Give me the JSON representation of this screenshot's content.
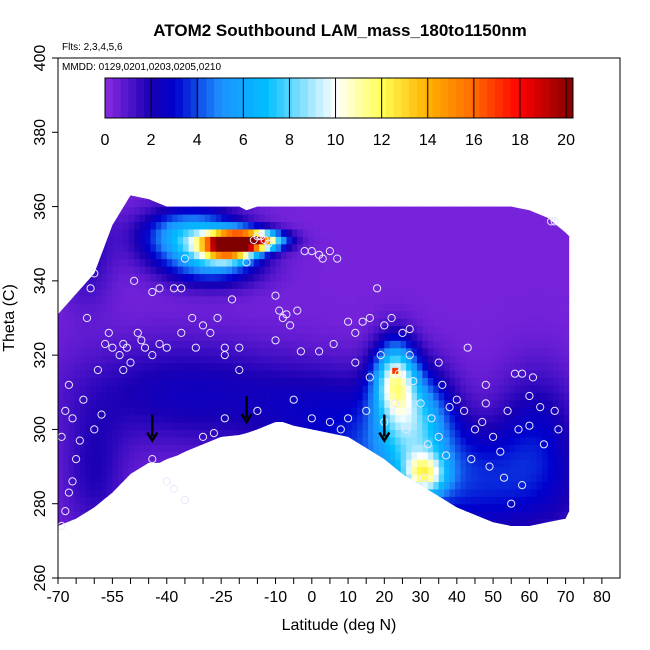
{
  "chart_data": {
    "type": "heatmap",
    "title": "ATOM2 Southbound LAM_mass_180to1150nm",
    "annotations": [
      "Flts: 2,3,4,5,6",
      "MMDD: 0129,0201,0203,0205,0210"
    ],
    "xlabel": "Latitude (deg N)",
    "ylabel": "Theta (C)",
    "xlim": [
      -70,
      85
    ],
    "ylim": [
      260,
      400
    ],
    "x_ticks": [
      -70,
      -65,
      -60,
      -55,
      -50,
      -45,
      -40,
      -35,
      -30,
      -25,
      -20,
      -15,
      -10,
      -5,
      0,
      5,
      10,
      15,
      20,
      25,
      30,
      35,
      40,
      45,
      50,
      55,
      60,
      65,
      70,
      75,
      80
    ],
    "x_tick_labels": [
      "-70",
      "",
      "",
      "-55",
      "",
      "",
      "-40",
      "",
      "",
      "-25",
      "",
      "",
      "-10",
      "",
      "0",
      "",
      "10",
      "",
      "20",
      "",
      "30",
      "",
      "40",
      "",
      "50",
      "",
      "60",
      "",
      "70",
      "",
      "80"
    ],
    "y_ticks": [
      260,
      280,
      300,
      320,
      340,
      360,
      380,
      400
    ],
    "y_tick_labels": [
      "260",
      "280",
      "300",
      "320",
      "340",
      "360",
      "380",
      "400"
    ],
    "colorbar": {
      "min": 0,
      "max": 20.3,
      "ticks": [
        0,
        2,
        4,
        6,
        8,
        10,
        12,
        14,
        16,
        18,
        20
      ],
      "tick_labels": [
        "0",
        "2",
        "4",
        "6",
        "8",
        "10",
        "12",
        "14",
        "16",
        "18",
        "20"
      ],
      "stops": [
        {
          "v": 0,
          "color": "#8a2be2"
        },
        {
          "v": 2,
          "color": "#1a00b4"
        },
        {
          "v": 3,
          "color": "#0000cd"
        },
        {
          "v": 5,
          "color": "#1e90ff"
        },
        {
          "v": 7,
          "color": "#00bfff"
        },
        {
          "v": 10,
          "color": "#ffffff"
        },
        {
          "v": 12,
          "color": "#ffff55"
        },
        {
          "v": 14,
          "color": "#ffb000"
        },
        {
          "v": 16,
          "color": "#ff6a00"
        },
        {
          "v": 18,
          "color": "#ff0000"
        },
        {
          "v": 20.3,
          "color": "#800000"
        }
      ]
    },
    "coverage": {
      "top_lat": [
        -70,
        -60,
        -55,
        -50,
        -45,
        -40,
        -35,
        -30,
        -25,
        -20,
        -18,
        -15,
        -10,
        -5,
        0,
        5,
        10,
        15,
        20,
        25,
        30,
        35,
        40,
        45,
        50,
        55,
        60,
        65,
        70,
        71
      ],
      "top_theta": [
        331,
        342,
        355,
        363,
        362,
        360,
        360,
        360,
        360,
        360,
        359,
        360,
        360,
        360,
        360,
        360,
        360,
        360,
        360,
        360,
        360,
        360,
        360,
        360,
        360,
        360,
        359,
        357,
        353,
        352
      ],
      "bottom_lat": [
        -70,
        -65,
        -60,
        -55,
        -50,
        -45,
        -42,
        -40,
        -37,
        -35,
        -30,
        -25,
        -20,
        -18,
        -15,
        -10,
        -8,
        -5,
        0,
        5,
        10,
        15,
        20,
        25,
        30,
        35,
        40,
        45,
        50,
        55,
        60,
        65,
        70,
        71
      ],
      "bottom_theta": [
        274,
        276,
        279,
        283,
        288,
        291,
        291,
        292,
        293,
        294,
        296,
        298,
        298.5,
        299,
        300,
        302,
        302,
        301,
        300,
        299,
        298,
        295,
        292,
        288,
        285,
        282,
        279,
        277,
        275,
        274,
        274,
        275,
        276,
        278
      ]
    },
    "features": [
      {
        "lat": -18,
        "theta": 351,
        "value": 20,
        "sx": 6,
        "sy": 1.8
      },
      {
        "lat": -23,
        "theta": 349,
        "value": 13,
        "sx": 5,
        "sy": 2.5
      },
      {
        "lat": -33,
        "theta": 352,
        "value": 7,
        "sx": 9,
        "sy": 5
      },
      {
        "lat": -27,
        "theta": 344,
        "value": 3.5,
        "sx": 9,
        "sy": 4
      },
      {
        "lat": 23,
        "theta": 314,
        "value": 8,
        "sx": 4,
        "sy": 7
      },
      {
        "lat": 28,
        "theta": 303,
        "value": 6,
        "sx": 7,
        "sy": 9
      },
      {
        "lat": 31,
        "theta": 288,
        "value": 7,
        "sx": 4,
        "sy": 4
      },
      {
        "lat": 20,
        "theta": 293,
        "value": 2.5,
        "sx": 20,
        "sy": 8
      },
      {
        "lat": -35,
        "theta": 310,
        "value": 2,
        "sx": 22,
        "sy": 10
      },
      {
        "lat": 5,
        "theta": 307,
        "value": 1.5,
        "sx": 15,
        "sy": 8
      },
      {
        "lat": 45,
        "theta": 283,
        "value": 2.5,
        "sx": 22,
        "sy": 10
      },
      {
        "lat": -60,
        "theta": 288,
        "value": 1.5,
        "sx": 6,
        "sy": 12
      },
      {
        "lat": -62,
        "theta": 348,
        "value": 1.5,
        "sx": 5,
        "sy": 10
      },
      {
        "lat": 62,
        "theta": 300,
        "value": 2,
        "sx": 8,
        "sy": 12
      }
    ],
    "markers": [
      {
        "lat": 23,
        "theta": 315.5,
        "value": 17
      },
      {
        "lat": -16,
        "theta": 351,
        "value": 20
      }
    ],
    "flight_points": [
      [
        -62,
        330
      ],
      [
        -61,
        338
      ],
      [
        -60,
        342
      ],
      [
        -57,
        323
      ],
      [
        -56,
        326
      ],
      [
        -55,
        322
      ],
      [
        -53,
        320
      ],
      [
        -52,
        316
      ],
      [
        -52,
        323
      ],
      [
        -51,
        322
      ],
      [
        -50,
        318
      ],
      [
        -48,
        326
      ],
      [
        -47,
        324
      ],
      [
        -46,
        322
      ],
      [
        -44,
        320
      ],
      [
        -44,
        292
      ],
      [
        -42,
        323
      ],
      [
        -40,
        322
      ],
      [
        -38,
        338
      ],
      [
        -36,
        338
      ],
      [
        -35,
        346
      ],
      [
        -32,
        322
      ],
      [
        -30,
        328
      ],
      [
        -28,
        326
      ],
      [
        -26,
        330
      ],
      [
        -24,
        320
      ],
      [
        -22,
        335
      ],
      [
        -20,
        316
      ],
      [
        -18,
        345
      ],
      [
        -16,
        351
      ],
      [
        -15,
        352
      ],
      [
        -14,
        352
      ],
      [
        -13,
        351
      ],
      [
        -12,
        350
      ],
      [
        -10,
        336
      ],
      [
        -9,
        332
      ],
      [
        -8,
        330
      ],
      [
        -6,
        328
      ],
      [
        -4,
        332
      ],
      [
        -2,
        348
      ],
      [
        0,
        348
      ],
      [
        2,
        347
      ],
      [
        3,
        346
      ],
      [
        5,
        348
      ],
      [
        7,
        346
      ],
      [
        8,
        300
      ],
      [
        10,
        329
      ],
      [
        12,
        326
      ],
      [
        14,
        329
      ],
      [
        16,
        330
      ],
      [
        18,
        338
      ],
      [
        19,
        320
      ],
      [
        20,
        328
      ],
      [
        22,
        330
      ],
      [
        23,
        307
      ],
      [
        24,
        315
      ],
      [
        25,
        326
      ],
      [
        27,
        320
      ],
      [
        28,
        313
      ],
      [
        30,
        307
      ],
      [
        31,
        287
      ],
      [
        33,
        303
      ],
      [
        35,
        298
      ],
      [
        36,
        312
      ],
      [
        38,
        306
      ],
      [
        40,
        308
      ],
      [
        42,
        305
      ],
      [
        43,
        322
      ],
      [
        45,
        300
      ],
      [
        47,
        302
      ],
      [
        48,
        307
      ],
      [
        50,
        298
      ],
      [
        52,
        294
      ],
      [
        54,
        305
      ],
      [
        55,
        280
      ],
      [
        57,
        300
      ],
      [
        58,
        315
      ],
      [
        60,
        301
      ],
      [
        61,
        314
      ],
      [
        63,
        306
      ],
      [
        64,
        296
      ],
      [
        66,
        356
      ],
      [
        67,
        305
      ],
      [
        68,
        300
      ],
      [
        -64,
        297
      ],
      [
        -65,
        292
      ],
      [
        -66,
        286
      ],
      [
        -67,
        283
      ],
      [
        -68,
        278
      ],
      [
        -69,
        274
      ],
      [
        -66,
        303
      ],
      [
        -63,
        308
      ],
      [
        -60,
        300
      ],
      [
        -58,
        304
      ],
      [
        -40,
        286
      ],
      [
        -38,
        284
      ],
      [
        -35,
        281
      ],
      [
        -30,
        298
      ],
      [
        -27,
        299
      ],
      [
        -24,
        303
      ],
      [
        -15,
        305
      ],
      [
        -5,
        308
      ],
      [
        0,
        303
      ],
      [
        5,
        302
      ],
      [
        10,
        303
      ],
      [
        15,
        305
      ],
      [
        20,
        302
      ],
      [
        26,
        300
      ],
      [
        32,
        296
      ],
      [
        37,
        293
      ],
      [
        44,
        292
      ],
      [
        49,
        290
      ],
      [
        53,
        287
      ],
      [
        58,
        285
      ],
      [
        -69,
        298
      ],
      [
        -68,
        305
      ],
      [
        -67,
        312
      ],
      [
        -59,
        316
      ],
      [
        -49,
        340
      ],
      [
        -44,
        337
      ],
      [
        -42,
        338
      ],
      [
        -36,
        326
      ],
      [
        -33,
        330
      ],
      [
        -24,
        322
      ],
      [
        -20,
        322
      ],
      [
        -10,
        324
      ],
      [
        -7,
        331
      ],
      [
        -3,
        321
      ],
      [
        2,
        321
      ],
      [
        6,
        323
      ],
      [
        12,
        318
      ],
      [
        16,
        314
      ],
      [
        27,
        327
      ],
      [
        35,
        318
      ],
      [
        48,
        312
      ],
      [
        56,
        315
      ],
      [
        60,
        309
      ],
      [
        67,
        356
      ]
    ],
    "arrows": [
      {
        "lat": -44,
        "theta": 297
      },
      {
        "lat": -18,
        "theta": 302
      },
      {
        "lat": 20,
        "theta": 297
      }
    ]
  }
}
